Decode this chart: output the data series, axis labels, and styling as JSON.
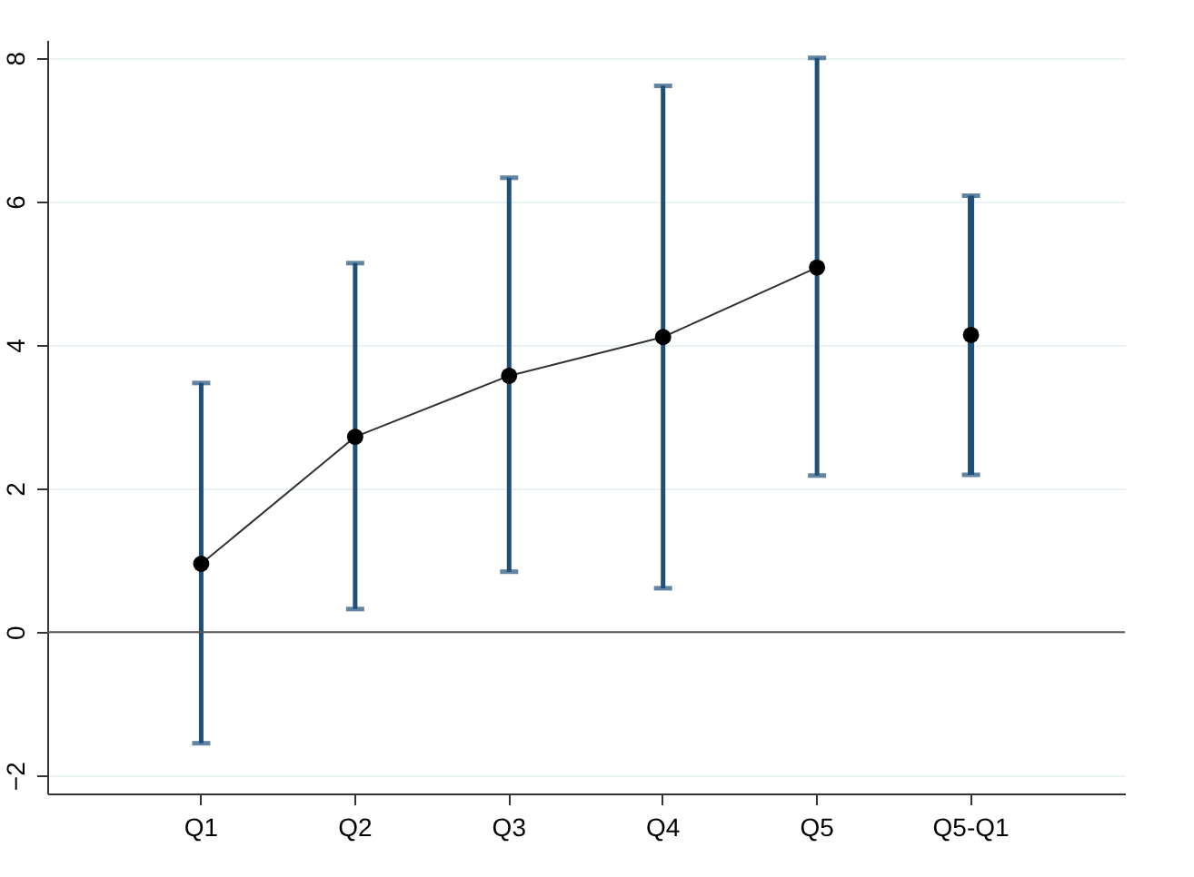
{
  "chart_data": {
    "type": "line",
    "categories": [
      "Q1",
      "Q2",
      "Q3",
      "Q4",
      "Q5",
      "Q5-Q1"
    ],
    "series": [
      {
        "color": "#000000",
        "values": [
          0.95,
          2.72,
          3.57,
          4.11,
          5.08,
          null
        ],
        "errors": [
          [
            -1.55,
            3.47
          ],
          [
            0.32,
            5.14
          ],
          [
            0.84,
            6.33
          ],
          [
            0.61,
            7.61
          ],
          [
            2.18,
            8.0
          ],
          null
        ]
      },
      {
        "type": "scatter",
        "color": "#000000",
        "values": [
          null,
          null,
          null,
          null,
          null,
          4.14
        ],
        "errors": [
          null,
          null,
          null,
          null,
          null,
          [
            2.19,
            6.08
          ]
        ]
      }
    ],
    "ylim": [
      -2.25,
      8.25
    ],
    "yticks": [
      -2,
      0,
      2,
      4,
      6,
      8
    ],
    "grid": "y",
    "marker": "circle",
    "line_style": "solid",
    "ref_lines": [
      {
        "axis": "y",
        "value": 0,
        "color": "#555555"
      }
    ]
  }
}
